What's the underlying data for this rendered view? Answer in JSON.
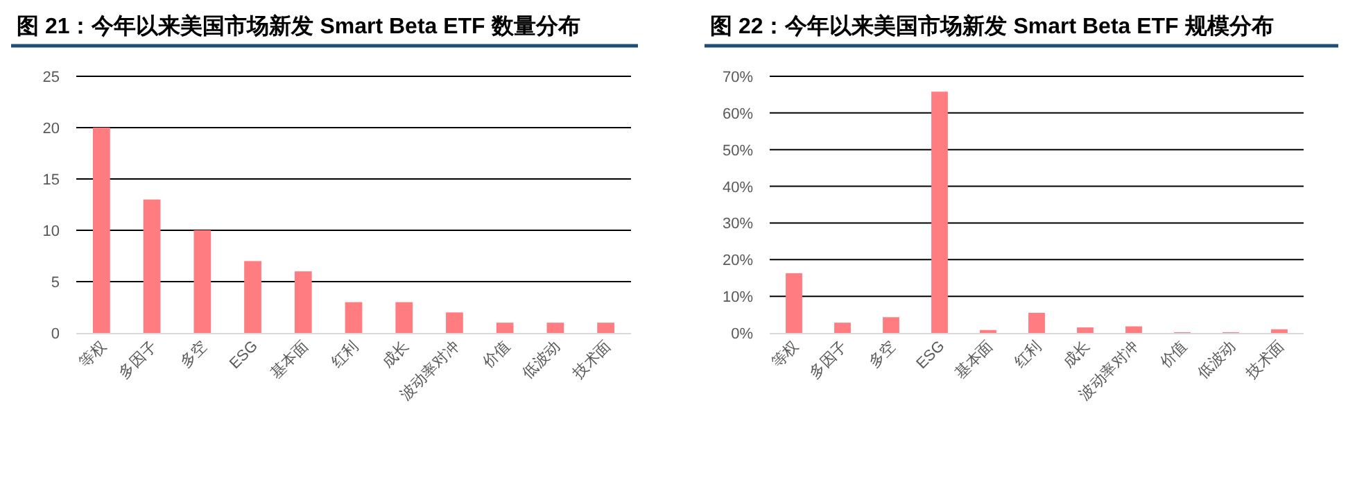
{
  "chart_data": [
    {
      "type": "bar",
      "title": "图 21：今年以来美国市场新发 Smart Beta ETF 数量分布",
      "categories": [
        "等权",
        "多因子",
        "多空",
        "ESG",
        "基本面",
        "红利",
        "成长",
        "波动率对冲",
        "价值",
        "低波动",
        "技术面"
      ],
      "values": [
        20,
        13,
        10,
        7,
        6,
        3,
        3,
        2,
        1,
        1,
        1
      ],
      "color": "#ff7c80",
      "ylim": [
        0,
        25
      ],
      "yticks": [
        0,
        5,
        10,
        15,
        20,
        25
      ],
      "grid": "y"
    },
    {
      "type": "bar",
      "title": "图 22：今年以来美国市场新发 Smart Beta ETF 规模分布",
      "categories": [
        "等权",
        "多因子",
        "多空",
        "ESG",
        "基本面",
        "红利",
        "成长",
        "波动率对冲",
        "价值",
        "低波动",
        "技术面"
      ],
      "values": [
        16.3,
        2.8,
        4.3,
        65.8,
        0.8,
        5.5,
        1.5,
        1.8,
        0.2,
        0.2,
        1.0
      ],
      "color": "#ff7c80",
      "ylim": [
        0,
        70
      ],
      "yticks": [
        {
          "value": 0,
          "label": "0%"
        },
        {
          "value": 10,
          "label": "10%"
        },
        {
          "value": 20,
          "label": "20%"
        },
        {
          "value": 30,
          "label": "30%"
        },
        {
          "value": 40,
          "label": "40%"
        },
        {
          "value": 50,
          "label": "50%"
        },
        {
          "value": 60,
          "label": "60%"
        },
        {
          "value": 70,
          "label": "70%"
        }
      ],
      "grid": "y"
    }
  ]
}
